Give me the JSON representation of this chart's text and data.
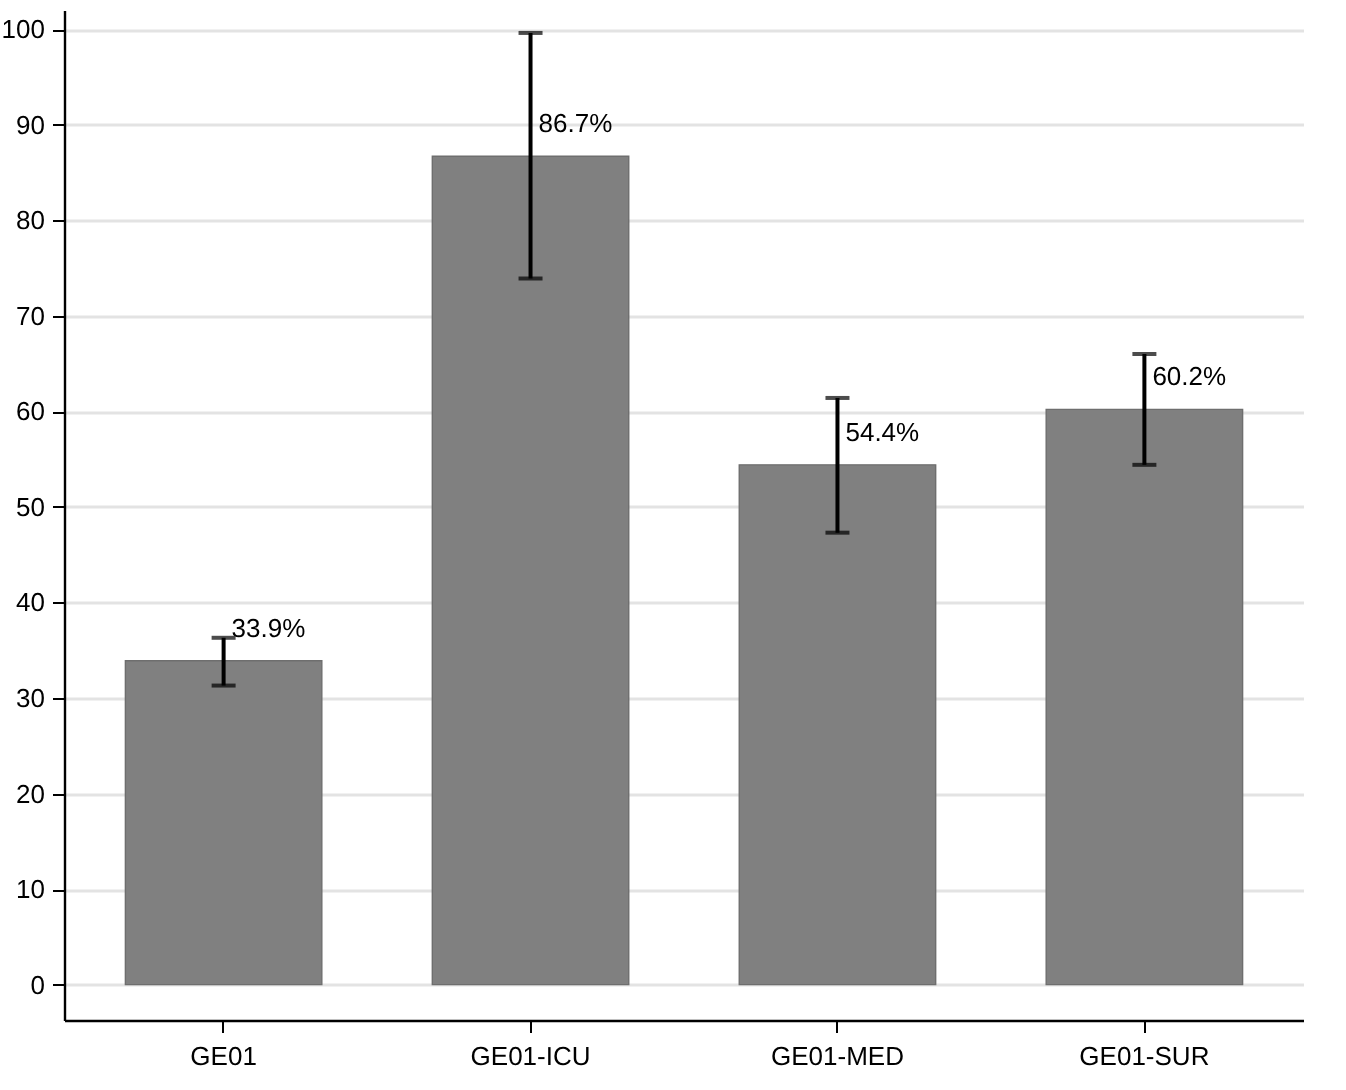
{
  "chart_data": {
    "type": "bar",
    "categories": [
      "GE01",
      "GE01-ICU",
      "GE01-MED",
      "GE01-SUR"
    ],
    "values": [
      33.9,
      86.7,
      54.4,
      60.2
    ],
    "errors": [
      [
        31.3,
        36.3
      ],
      [
        73.9,
        99.6
      ],
      [
        47.3,
        61.4
      ],
      [
        54.4,
        66.0
      ]
    ],
    "value_labels": [
      "33.9%",
      "86.7%",
      "54.4%",
      "60.2%"
    ],
    "color": "#808080",
    "ylim": [
      -3.7,
      102
    ],
    "yticks": [
      0,
      10,
      20,
      30,
      40,
      50,
      60,
      70,
      80,
      90,
      100
    ],
    "grid": "y"
  }
}
